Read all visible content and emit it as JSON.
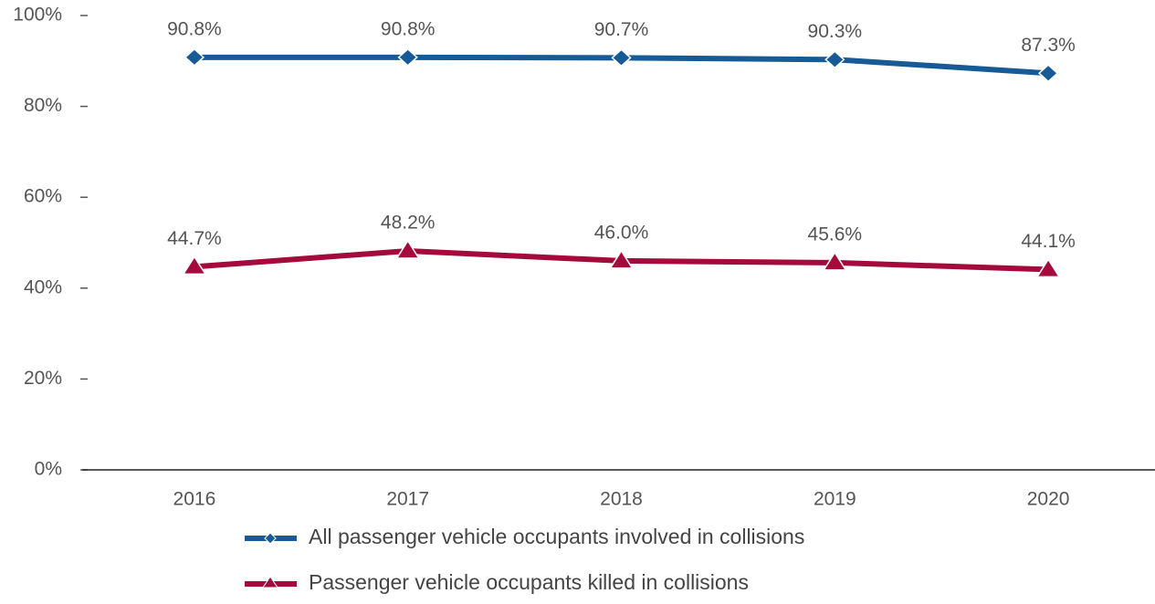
{
  "chart_data": {
    "type": "line",
    "categories": [
      "2016",
      "2017",
      "2018",
      "2019",
      "2020"
    ],
    "series": [
      {
        "name": "All passenger vehicle occupants involved in collisions",
        "color": "#165a96",
        "marker": "diamond",
        "values": [
          90.8,
          90.8,
          90.7,
          90.3,
          87.3
        ],
        "value_labels": [
          "90.8%",
          "90.8%",
          "90.7%",
          "90.3%",
          "87.3%"
        ]
      },
      {
        "name": "Passenger vehicle occupants killed in collisions",
        "color": "#a50a3c",
        "marker": "triangle",
        "values": [
          44.7,
          48.2,
          46.0,
          45.6,
          44.1
        ],
        "value_labels": [
          "44.7%",
          "48.2%",
          "46.0%",
          "45.6%",
          "44.1%"
        ]
      }
    ],
    "ylim": [
      0,
      100
    ],
    "yticks": [
      {
        "value": 0,
        "label": "0%"
      },
      {
        "value": 20,
        "label": "20%"
      },
      {
        "value": 40,
        "label": "40%"
      },
      {
        "value": 60,
        "label": "60%"
      },
      {
        "value": 80,
        "label": "80%"
      },
      {
        "value": 100,
        "label": "100%"
      }
    ],
    "legend": "bottom"
  }
}
